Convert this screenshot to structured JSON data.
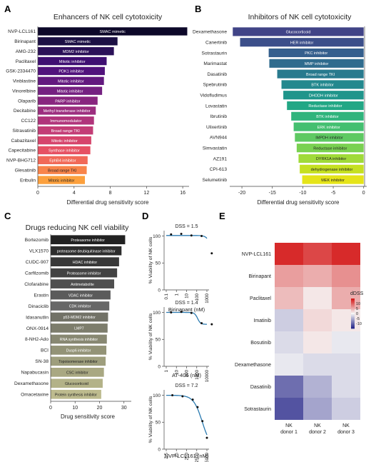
{
  "panels": {
    "A": {
      "letter": "A",
      "title": "Enhancers of NK cell cytotoxicity",
      "xlabel": "Differential drug sensitivity score"
    },
    "B": {
      "letter": "B",
      "title": "Inhibitors of NK cell cytotoxicity",
      "xlabel": "Differential drug sensitivity score"
    },
    "C": {
      "letter": "C",
      "title": "Drugs reducing NK cell viability",
      "xlabel": "Drug sensitivity score"
    },
    "D": {
      "letter": "D"
    },
    "E": {
      "letter": "E"
    }
  },
  "chart_data": [
    {
      "id": "A",
      "type": "bar",
      "orientation": "horizontal",
      "title": "Enhancers of NK cell cytotoxicity",
      "xlabel": "Differential drug sensitivity score",
      "xlim": [
        0,
        16.7
      ],
      "xticks": [
        0,
        4,
        8,
        12,
        16
      ],
      "categories": [
        "NVP-LCL161",
        "Birinapant",
        "AMG-232",
        "Paclitaxel",
        "GSK-2334470",
        "Vinblastine",
        "Vinorelbine",
        "Olaparib",
        "Decitabine",
        "CC122",
        "Sitravatinib",
        "Cabazitaxel",
        "Capecitabine",
        "NVP-BHG712",
        "Glesatinib",
        "Eribulin"
      ],
      "values": [
        16.5,
        8.8,
        8.4,
        7.6,
        7.4,
        7.3,
        7.1,
        6.6,
        6.4,
        6.2,
        6.1,
        5.9,
        5.8,
        5.5,
        5.4,
        5.2
      ],
      "labels": [
        "SMAC mimetic",
        "SMAC mimetic",
        "MDM2 inhibitor",
        "Mitotic inhibitor",
        "PDK1 inhibitor",
        "Mitotic inhibitor",
        "Mitotic inhibitor",
        "PARP inhibitor",
        "Methyl transferase inhibitor",
        "Immunomodulator",
        "Broad range TKI",
        "Mitotic inhibitor",
        "Synthase inhibitor",
        "EphB4 inhibitor",
        "Broad range TKI",
        "Mitotic inhibitor"
      ],
      "colors": [
        "#0d0829",
        "#1c1044",
        "#2b1158",
        "#3f0f72",
        "#51127c",
        "#63197f",
        "#752181",
        "#88267f",
        "#9c2e7f",
        "#b0347b",
        "#c33d76",
        "#d6456c",
        "#e65163",
        "#f16958",
        "#f8844a",
        "#fca03d"
      ]
    },
    {
      "id": "B",
      "type": "bar",
      "orientation": "horizontal",
      "title": "Inhibitors of NK cell cytotoxicity",
      "xlabel": "Differential drug sensitivity score",
      "xlim": [
        -22,
        0.5
      ],
      "xticks": [
        -20,
        -15,
        -10,
        -5,
        0
      ],
      "categories": [
        "Dexamethasone",
        "Canertinib",
        "Sotrastaurin",
        "Marimastat",
        "Dasatinib",
        "Spebrutinib",
        "Vidofludimus",
        "Lovastatin",
        "Ibrutinib",
        "Ulixertinib",
        "AVN944",
        "Simvastatin",
        "AZ191",
        "CPI-613",
        "Selumetinib"
      ],
      "values": [
        -21.5,
        -20.3,
        -15.6,
        -15.5,
        -14.2,
        -13.5,
        -13.2,
        -12.6,
        -11.9,
        -11.5,
        -11.3,
        -11.0,
        -10.7,
        -10.5,
        -10.1
      ],
      "labels": [
        "Glucocorticoid",
        "HER inhibitor",
        "PKC inhibitor",
        "MMP inhibitor",
        "Broad range TKI",
        "BTK inhibitor",
        "DHODH inhibitor",
        "Reductase inhibitor",
        "BTK inhibitor",
        "ERK inhibitor",
        "IMPDH inhibitor",
        "Reductase inhibitor",
        "DYRK1A inhibitor",
        "dehydrogenase inhibitor",
        "MEK inhibitor"
      ],
      "colors": [
        "#414487",
        "#3c4f8a",
        "#355f8d",
        "#2f6c8e",
        "#297a8e",
        "#23888e",
        "#1f958b",
        "#22a785",
        "#2fb47c",
        "#44bf70",
        "#5ec962",
        "#7ad151",
        "#a0da39",
        "#c5e021",
        "#e5e419"
      ]
    },
    {
      "id": "C",
      "type": "bar",
      "orientation": "horizontal",
      "title": "Drugs reducing NK cell viability",
      "xlabel": "Drug sensitivity score",
      "xlim": [
        0,
        33
      ],
      "xticks": [
        0,
        10,
        20,
        30
      ],
      "categories": [
        "Bortezomib",
        "VLX1570",
        "CUDC-907",
        "Carfilzomib",
        "Clofarabine",
        "Erastin",
        "Dinaciclib",
        "Idasanutlin",
        "ONX-0914",
        "8-NH2-Ado",
        "BCI",
        "SN-38",
        "Napabucasin",
        "Dexamethasone",
        "Omacetaxine"
      ],
      "values": [
        30.5,
        29.0,
        28.0,
        27.2,
        26.0,
        24.5,
        24.0,
        23.5,
        23.3,
        23.0,
        22.8,
        22.5,
        21.8,
        21.3,
        20.7
      ],
      "labels": [
        "Proteasome inhibitor",
        "proteasome deubiquitinase inhibitor",
        "HDAC inhibitor",
        "Proteasome inhibitor",
        "Antimetabolite",
        "VDAC inhibitor",
        "CDK inhibitor",
        "p53-MDM2 inhibitor",
        "LMP7",
        "RNA synthesis inhibitor",
        "Dusp6 inhibitor",
        "Topoisomerase inhibitor",
        "CSC inhibitor",
        "Glucocorticoid",
        "Protein synthesis inhibitor"
      ],
      "colors": [
        "#222222",
        "#2d2d2d",
        "#383838",
        "#434343",
        "#4f4f4f",
        "#5b5b5b",
        "#676767",
        "#727267",
        "#7d7d6c",
        "#888872",
        "#939377",
        "#9e9e7d",
        "#a9a882",
        "#b3b288",
        "#bdbb8e"
      ]
    },
    {
      "id": "D1",
      "type": "line",
      "title": "DSS = 1.5",
      "xlabel": "Birinapant (nM)",
      "ylabel": "% Viability of NK cells",
      "ylim": [
        0,
        110
      ],
      "yticks": [
        0,
        50,
        100
      ],
      "xtick_labels": [
        "0.1",
        "1",
        "10",
        "100",
        "1000"
      ],
      "points": [
        {
          "x": 0.3,
          "y": 103
        },
        {
          "x": 3,
          "y": 104
        },
        {
          "x": 30,
          "y": 101
        },
        {
          "x": 300,
          "y": 100
        },
        {
          "x": 3000,
          "y": 68
        }
      ],
      "fit": {
        "top": 101,
        "bottom": 0,
        "ec50": 4200,
        "hill": 2
      }
    },
    {
      "id": "D2",
      "type": "line",
      "title": "DSS = 1.4",
      "xlabel": "AT-406 (nM)",
      "ylabel": "% Viability of NK cells",
      "ylim": [
        0,
        110
      ],
      "yticks": [
        0,
        50,
        100
      ],
      "xtick_labels": [
        "1",
        "10",
        "100",
        "1000",
        "10000"
      ],
      "points": [
        {
          "x": 3,
          "y": 100
        },
        {
          "x": 30,
          "y": 101
        },
        {
          "x": 300,
          "y": 99
        },
        {
          "x": 3000,
          "y": 80
        },
        {
          "x": 30000,
          "y": 78
        }
      ],
      "fit": {
        "top": 100,
        "bottom": 78,
        "ec50": 1200,
        "hill": 3
      }
    },
    {
      "id": "D3",
      "type": "line",
      "title": "DSS = 7.2",
      "xlabel": "NVP-LCL161 (nM)",
      "ylabel": "% Viability of NK cells",
      "ylim": [
        0,
        110
      ],
      "yticks": [
        0,
        50,
        100
      ],
      "xtick_labels": [
        "2.5",
        "25",
        "250",
        "2500",
        "25000"
      ],
      "points": [
        {
          "x": 10,
          "y": 100
        },
        {
          "x": 100,
          "y": 98
        },
        {
          "x": 1000,
          "y": 92
        },
        {
          "x": 3000,
          "y": 78
        },
        {
          "x": 9000,
          "y": 52
        },
        {
          "x": 25000,
          "y": 21
        }
      ],
      "fit": {
        "top": 100,
        "bottom": 0,
        "ec50": 9000,
        "hill": 1
      }
    },
    {
      "id": "E",
      "type": "heatmap",
      "rows": [
        "NVP-LCL161",
        "Birinapant",
        "Paclitaxel",
        "Imatinib",
        "Bosutinib",
        "Dexamethasone",
        "Dasatinib",
        "Sotrastaurin"
      ],
      "columns": [
        "NK\ndonor 1",
        "NK\ndonor 2",
        "NK\ndonor 3"
      ],
      "values": [
        [
          14,
          12,
          14
        ],
        [
          6,
          5,
          7
        ],
        [
          4,
          1,
          5
        ],
        [
          -3,
          2,
          1
        ],
        [
          -2,
          1,
          -1
        ],
        [
          -1,
          -2,
          -2
        ],
        [
          -10,
          -5,
          -2
        ],
        [
          -12,
          -6,
          -3
        ]
      ],
      "legend_title": "dDSS",
      "legend_ticks": [
        10,
        5,
        0,
        -5,
        -10
      ],
      "vmin": -15,
      "vmax": 15
    }
  ]
}
